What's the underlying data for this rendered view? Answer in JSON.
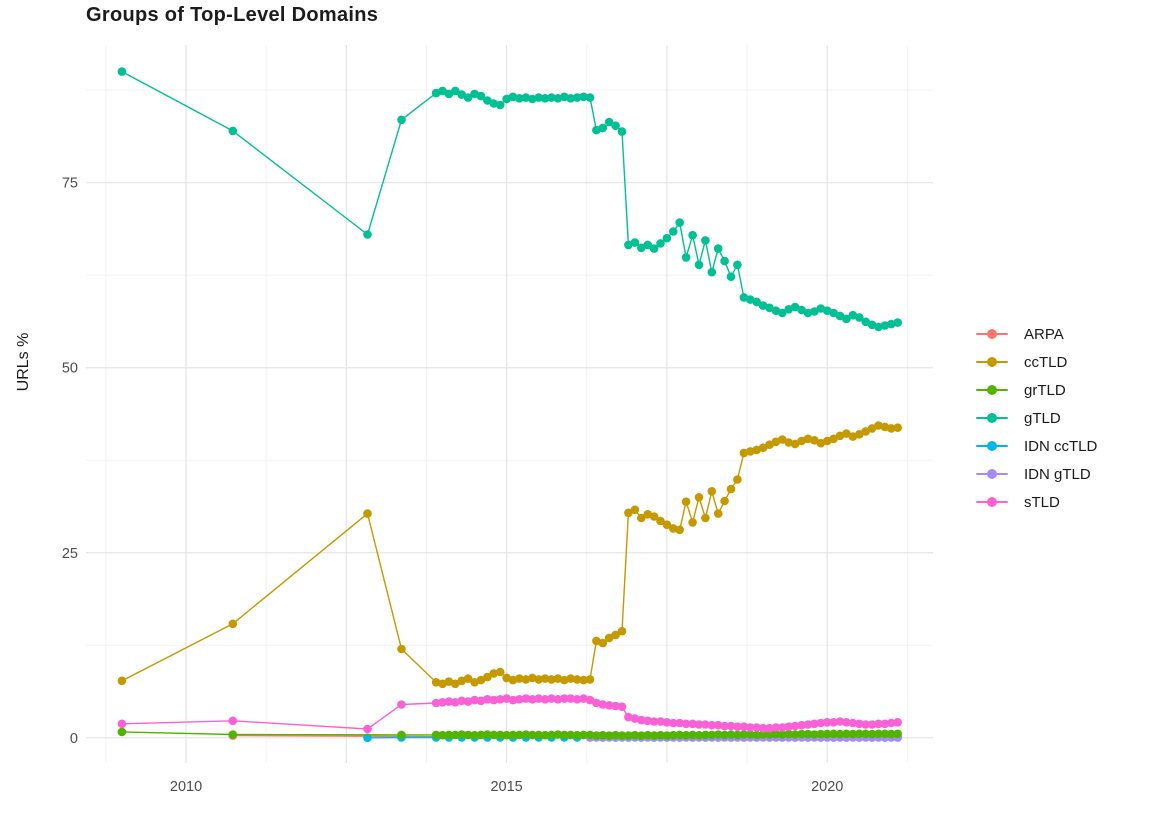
{
  "chart_data": {
    "type": "line",
    "title": "Groups of Top-Level Domains",
    "ylabel": "URLs %",
    "xlabel": "",
    "grid": true,
    "legend_position": "right",
    "x_axis": {
      "domain": [
        2008.44,
        2021.65
      ],
      "tick_values": [
        2010,
        2015,
        2020
      ],
      "tick_labels": [
        "2010",
        "2015",
        "2020"
      ],
      "grid_major": [
        2010,
        2012.5,
        2015,
        2017.5,
        2020
      ],
      "grid_minor": [
        2008.75,
        2011.25,
        2013.75,
        2016.25,
        2018.75,
        2021.25
      ]
    },
    "y_axis": {
      "domain": [
        -3.4,
        93.6
      ],
      "tick_values": [
        0,
        25,
        50,
        75
      ],
      "tick_labels": [
        "0",
        "25",
        "50",
        "75"
      ],
      "grid_major": [
        0,
        25,
        50,
        75
      ],
      "grid_minor": [
        12.5,
        37.5,
        62.5,
        87.5
      ]
    },
    "series": [
      {
        "name": "ARPA",
        "color": "#F8766D",
        "segments": [
          {
            "pairs": [
              [
                2010.73,
                0.3
              ],
              [
                2013.36,
                0.2
              ]
            ]
          },
          {
            "start": 2013.9,
            "step": 0.2,
            "values": [
              0.15,
              0.15,
              0.15,
              0.15,
              0.15,
              0.15,
              0.15,
              0.15,
              0.15,
              0.15,
              0.15,
              0.15,
              0.15,
              0.15,
              0.15,
              0.15,
              0.15,
              0.15,
              0.15,
              0.15,
              0.15,
              0.15,
              0.15,
              0.15,
              0.15,
              0.15,
              0.15,
              0.15,
              0.15,
              0.15,
              0.15,
              0.15,
              0.15,
              0.15,
              0.15,
              0.15,
              0.15
            ]
          }
        ]
      },
      {
        "name": "ccTLD",
        "color": "#C49A00",
        "segments": [
          {
            "pairs": [
              [
                2009.0,
                7.7
              ],
              [
                2010.73,
                15.4
              ],
              [
                2012.83,
                30.3
              ],
              [
                2013.36,
                12.0
              ]
            ]
          },
          {
            "start": 2013.9,
            "step": 0.1,
            "values": [
              7.5,
              7.3,
              7.6,
              7.3,
              7.7,
              8.0,
              7.5,
              7.8,
              8.2,
              8.7,
              8.9,
              8.1,
              7.8,
              8.0,
              7.9,
              8.1,
              7.9,
              8.0,
              7.9,
              8.0,
              7.8,
              8.0,
              7.9,
              7.8,
              7.9,
              13.1,
              12.8,
              13.5,
              13.9,
              14.4,
              30.4,
              30.8,
              29.7,
              30.2,
              29.9,
              29.3,
              28.8,
              28.3,
              28.1,
              31.9,
              29.1,
              32.5,
              29.7,
              33.3,
              30.3,
              32.0,
              33.6,
              34.9,
              38.5,
              38.7,
              38.9,
              39.2,
              39.6,
              40.0,
              40.3,
              39.9,
              39.7,
              40.1,
              40.4,
              40.2,
              39.8,
              40.1,
              40.4,
              40.8,
              41.1,
              40.7,
              41.0,
              41.4,
              41.8,
              42.2,
              42.0,
              41.8,
              41.9
            ]
          }
        ]
      },
      {
        "name": "grTLD",
        "color": "#53B400",
        "segments": [
          {
            "pairs": [
              [
                2009.0,
                0.8
              ],
              [
                2010.73,
                0.45
              ],
              [
                2013.36,
                0.4
              ]
            ]
          },
          {
            "start": 2013.9,
            "step": 0.1,
            "values": [
              0.4,
              0.35,
              0.4,
              0.4,
              0.45,
              0.4,
              0.35,
              0.4,
              0.45,
              0.4,
              0.4,
              0.35,
              0.4,
              0.4,
              0.45,
              0.4,
              0.4,
              0.35,
              0.4,
              0.45,
              0.4,
              0.4,
              0.35,
              0.4,
              0.4,
              0.3,
              0.35,
              0.3,
              0.35,
              0.3,
              0.3,
              0.35,
              0.3,
              0.35,
              0.3,
              0.35,
              0.3,
              0.35,
              0.4,
              0.35,
              0.4,
              0.35,
              0.4,
              0.4,
              0.45,
              0.4,
              0.45,
              0.4,
              0.45,
              0.45,
              0.4,
              0.45,
              0.45,
              0.5,
              0.45,
              0.5,
              0.45,
              0.5,
              0.5,
              0.45,
              0.5,
              0.5,
              0.55,
              0.5,
              0.55,
              0.5,
              0.55,
              0.55,
              0.5,
              0.55,
              0.55,
              0.5,
              0.55
            ]
          }
        ]
      },
      {
        "name": "gTLD",
        "color": "#00C094",
        "segments": [
          {
            "pairs": [
              [
                2009.0,
                90.0
              ],
              [
                2010.73,
                82.0
              ],
              [
                2012.83,
                68.0
              ],
              [
                2013.36,
                83.5
              ]
            ]
          },
          {
            "start": 2013.9,
            "step": 0.1,
            "values": [
              87.1,
              87.4,
              87.0,
              87.4,
              86.9,
              86.5,
              87.0,
              86.7,
              86.1,
              85.7,
              85.5,
              86.3,
              86.6,
              86.4,
              86.5,
              86.3,
              86.5,
              86.4,
              86.5,
              86.4,
              86.6,
              86.4,
              86.5,
              86.6,
              86.5,
              82.1,
              82.4,
              83.2,
              82.7,
              81.9,
              66.6,
              66.9,
              66.2,
              66.6,
              66.1,
              66.8,
              67.5,
              68.4,
              69.6,
              64.9,
              67.9,
              63.9,
              67.2,
              62.9,
              66.1,
              64.4,
              62.3,
              63.9,
              59.5,
              59.2,
              58.9,
              58.4,
              58.1,
              57.7,
              57.4,
              57.9,
              58.2,
              57.8,
              57.4,
              57.6,
              58.0,
              57.7,
              57.4,
              57.0,
              56.6,
              57.1,
              56.8,
              56.2,
              55.8,
              55.5,
              55.7,
              55.9,
              56.1
            ]
          }
        ]
      },
      {
        "name": "IDN ccTLD",
        "color": "#00B6EB",
        "segments": [
          {
            "pairs": [
              [
                2012.83,
                0.0
              ],
              [
                2013.36,
                0.05
              ]
            ]
          },
          {
            "start": 2013.9,
            "step": 0.2,
            "values": [
              0.05,
              0.05,
              0.05,
              0.05,
              0.05,
              0.05,
              0.05,
              0.05,
              0.05,
              0.05,
              0.05,
              0.05,
              0.05,
              0.05,
              0.05,
              0.05,
              0.05,
              0.05,
              0.05,
              0.05,
              0.05,
              0.05,
              0.05,
              0.05,
              0.05,
              0.05,
              0.05,
              0.05,
              0.05,
              0.05,
              0.05,
              0.05,
              0.05,
              0.05,
              0.05,
              0.05,
              0.05
            ]
          }
        ]
      },
      {
        "name": "IDN gTLD",
        "color": "#A58AFF",
        "segments": [
          {
            "start": 2016.3,
            "step": 0.1,
            "values": [
              0.05,
              0.05,
              0.05,
              0.05,
              0.05,
              0.05,
              0.05,
              0.05,
              0.05,
              0.05,
              0.05,
              0.05,
              0.05,
              0.05,
              0.05,
              0.05,
              0.05,
              0.05,
              0.05,
              0.05,
              0.05,
              0.05,
              0.05,
              0.05,
              0.05,
              0.05,
              0.05,
              0.05,
              0.05,
              0.05,
              0.05,
              0.05,
              0.05,
              0.05,
              0.05,
              0.05,
              0.05,
              0.05,
              0.05,
              0.05,
              0.05,
              0.05,
              0.05,
              0.05,
              0.05,
              0.05,
              0.05,
              0.05,
              0.05
            ]
          }
        ]
      },
      {
        "name": "sTLD",
        "color": "#FB61D7",
        "segments": [
          {
            "pairs": [
              [
                2009.0,
                1.9
              ],
              [
                2010.73,
                2.3
              ],
              [
                2012.83,
                1.2
              ],
              [
                2013.36,
                4.5
              ]
            ]
          },
          {
            "start": 2013.9,
            "step": 0.1,
            "values": [
              4.7,
              4.8,
              4.9,
              4.8,
              5.0,
              4.9,
              5.1,
              5.0,
              5.2,
              5.1,
              5.2,
              5.3,
              5.1,
              5.2,
              5.3,
              5.2,
              5.3,
              5.2,
              5.3,
              5.2,
              5.3,
              5.3,
              5.2,
              5.3,
              5.1,
              4.7,
              4.5,
              4.4,
              4.3,
              4.2,
              2.8,
              2.6,
              2.4,
              2.3,
              2.2,
              2.2,
              2.1,
              2.0,
              2.0,
              1.9,
              1.9,
              1.8,
              1.8,
              1.7,
              1.7,
              1.6,
              1.6,
              1.5,
              1.5,
              1.4,
              1.4,
              1.3,
              1.3,
              1.4,
              1.4,
              1.5,
              1.6,
              1.7,
              1.8,
              1.9,
              2.0,
              2.1,
              2.1,
              2.2,
              2.1,
              2.0,
              1.9,
              1.8,
              1.8,
              1.9,
              1.9,
              2.0,
              2.1
            ]
          }
        ]
      }
    ],
    "legend_entries": [
      "ARPA",
      "ccTLD",
      "grTLD",
      "gTLD",
      "IDN ccTLD",
      "IDN gTLD",
      "sTLD"
    ]
  },
  "colors": {
    "background": "#ffffff",
    "grid_major": "#e4e4e4",
    "grid_minor": "#f2f2f2",
    "tick_text": "#4c4c4c",
    "title_text": "#1c1c1c"
  }
}
